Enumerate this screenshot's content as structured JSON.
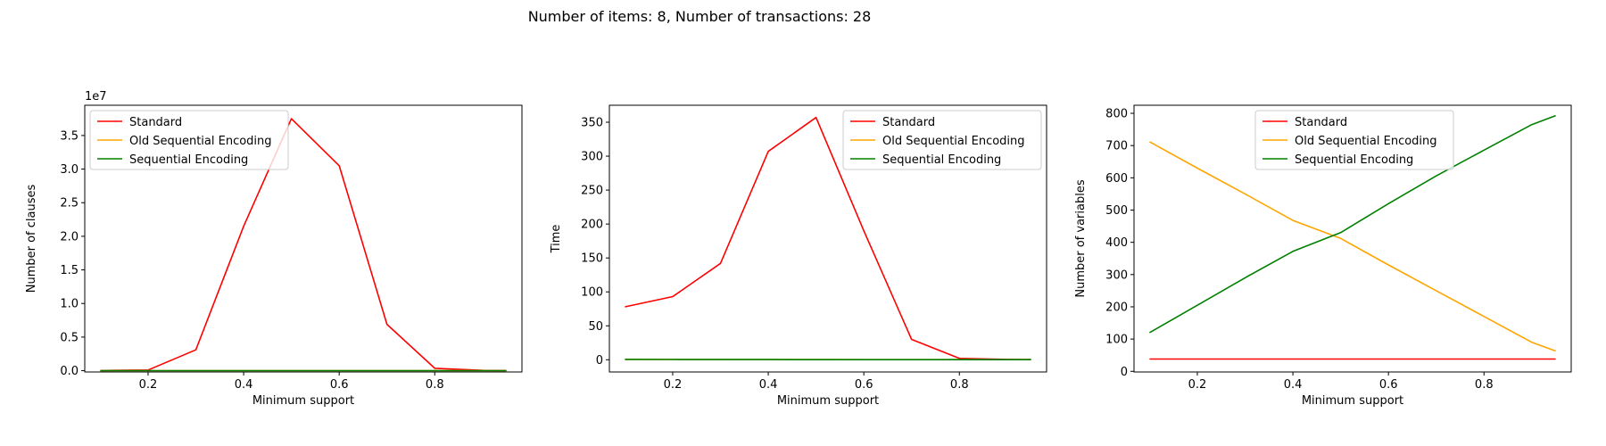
{
  "figure": {
    "suptitle": "Number of items: 8, Number of transactions: 28"
  },
  "chart_data": [
    {
      "type": "line",
      "title": "",
      "xlabel": "Minimum support",
      "ylabel": "Number of clauses",
      "y_offset_text": "1e7",
      "xlim": [
        0.0675,
        0.9825
      ],
      "ylim": [
        -0.19,
        39.5
      ],
      "y_scale_factor": 10000000,
      "xticks": [
        0.2,
        0.4,
        0.6,
        0.8
      ],
      "xtick_labels": [
        "0.2",
        "0.4",
        "0.6",
        "0.8"
      ],
      "yticks": [
        0,
        5,
        10,
        15,
        20,
        25,
        30,
        35
      ],
      "ytick_labels": [
        "0.0",
        "0.5",
        "1.0",
        "1.5",
        "2.0",
        "2.5",
        "3.0",
        "3.5"
      ],
      "x": [
        0.1,
        0.2,
        0.3,
        0.4,
        0.5,
        0.6,
        0.7,
        0.8,
        0.9,
        0.95
      ],
      "series": [
        {
          "name": "Standard",
          "color": "#ff0000",
          "values": [
            0.02,
            0.1,
            3.1,
            21.5,
            37.5,
            30.5,
            6.9,
            0.35,
            0.05,
            0.02
          ]
        },
        {
          "name": "Old Sequential Encoding",
          "color": "#ffa500",
          "values": [
            0.005,
            0.005,
            0.005,
            0.005,
            0.005,
            0.005,
            0.005,
            0.005,
            0.005,
            0.005
          ]
        },
        {
          "name": "Sequential Encoding",
          "color": "#008000",
          "values": [
            0.003,
            0.003,
            0.003,
            0.003,
            0.003,
            0.003,
            0.003,
            0.003,
            0.003,
            0.003
          ]
        }
      ],
      "grid": false,
      "legend": "upper left"
    },
    {
      "type": "line",
      "title": "",
      "xlabel": "Minimum support",
      "ylabel": "Time",
      "xlim": [
        0.0675,
        0.9825
      ],
      "ylim": [
        -18,
        375
      ],
      "xticks": [
        0.2,
        0.4,
        0.6,
        0.8
      ],
      "xtick_labels": [
        "0.2",
        "0.4",
        "0.6",
        "0.8"
      ],
      "yticks": [
        0,
        50,
        100,
        150,
        200,
        250,
        300,
        350
      ],
      "ytick_labels": [
        "0",
        "50",
        "100",
        "150",
        "200",
        "250",
        "300",
        "350"
      ],
      "x": [
        0.1,
        0.2,
        0.3,
        0.4,
        0.5,
        0.6,
        0.7,
        0.8,
        0.9,
        0.95
      ],
      "series": [
        {
          "name": "Standard",
          "color": "#ff0000",
          "values": [
            78,
            93,
            142,
            307,
            357,
            190,
            30,
            2,
            0.5,
            0.3
          ]
        },
        {
          "name": "Old Sequential Encoding",
          "color": "#ffa500",
          "values": [
            0.6,
            0.5,
            0.4,
            0.3,
            0.3,
            0.2,
            0.2,
            0.2,
            0.1,
            0.1
          ]
        },
        {
          "name": "Sequential Encoding",
          "color": "#008000",
          "values": [
            0.5,
            0.4,
            0.3,
            0.3,
            0.2,
            0.2,
            0.2,
            0.1,
            0.1,
            0.1
          ]
        }
      ],
      "grid": false,
      "legend": "upper right"
    },
    {
      "type": "line",
      "title": "",
      "xlabel": "Minimum support",
      "ylabel": "Number of variables",
      "xlim": [
        0.0675,
        0.9825
      ],
      "ylim": [
        -2,
        825
      ],
      "xticks": [
        0.2,
        0.4,
        0.6,
        0.8
      ],
      "xtick_labels": [
        "0.2",
        "0.4",
        "0.6",
        "0.8"
      ],
      "yticks": [
        0,
        100,
        200,
        300,
        400,
        500,
        600,
        700,
        800
      ],
      "ytick_labels": [
        "0",
        "100",
        "200",
        "300",
        "400",
        "500",
        "600",
        "700",
        "800"
      ],
      "x": [
        0.1,
        0.2,
        0.3,
        0.4,
        0.5,
        0.6,
        0.7,
        0.8,
        0.9,
        0.95
      ],
      "series": [
        {
          "name": "Standard",
          "color": "#ff0000",
          "values": [
            38,
            38,
            38,
            38,
            38,
            38,
            38,
            38,
            38,
            38
          ]
        },
        {
          "name": "Old Sequential Encoding",
          "color": "#ffa500",
          "values": [
            712,
            630,
            550,
            468,
            412,
            330,
            250,
            170,
            90,
            63
          ]
        },
        {
          "name": "Sequential Encoding",
          "color": "#008000",
          "values": [
            120,
            205,
            290,
            372,
            430,
            520,
            606,
            686,
            765,
            793
          ]
        }
      ],
      "grid": false,
      "legend": "upper center"
    }
  ]
}
